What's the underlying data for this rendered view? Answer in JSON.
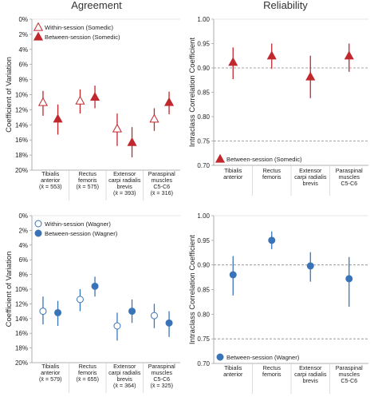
{
  "titles": {
    "left": "Agreement",
    "right": "Reliability"
  },
  "chart_data": [
    {
      "type": "scatter",
      "panel": "top-left",
      "title": "Agreement",
      "ylabel": "Coefficient of Variation",
      "ylim": [
        0,
        20
      ],
      "y_inverted": true,
      "yticks": [
        "0%",
        "2%",
        "4%",
        "6%",
        "8%",
        "10%",
        "12%",
        "14%",
        "16%",
        "18%",
        "20%"
      ],
      "categories": [
        [
          "Tibialis",
          "anterior",
          "(x̄ = 553)"
        ],
        [
          "Rectus",
          "femoris",
          "(x̄ = 575)"
        ],
        [
          "Extensor",
          "carpi radialis",
          "brevis",
          "(x̄ = 393)"
        ],
        [
          "Paraspinal",
          "muscles",
          "C5-C6",
          "(x̄ = 316)"
        ]
      ],
      "legend_position": "top-left",
      "series": [
        {
          "name": "Within-session (Somedic)",
          "marker": "triangle-open",
          "color": "#c0282d",
          "values": [
            11.0,
            10.8,
            14.5,
            13.2
          ],
          "lower": [
            9.5,
            9.3,
            12.5,
            11.8
          ],
          "upper": [
            12.8,
            12.5,
            16.8,
            14.8
          ]
        },
        {
          "name": "Between-session (Somedic)",
          "marker": "triangle",
          "color": "#c0282d",
          "values": [
            13.2,
            10.3,
            16.3,
            11.0
          ],
          "lower": [
            11.3,
            8.8,
            14.3,
            9.6
          ],
          "upper": [
            15.3,
            11.8,
            18.3,
            12.6
          ]
        }
      ]
    },
    {
      "type": "scatter",
      "panel": "top-right",
      "title": "Reliability",
      "ylabel": "Intraclass Correlation Coefficient",
      "ylim": [
        0.7,
        1.0
      ],
      "yticks": [
        "0.70",
        "0.75",
        "0.80",
        "0.85",
        "0.90",
        "0.95",
        "1.00"
      ],
      "reference_lines": [
        0.9,
        0.75
      ],
      "categories": [
        [
          "Tibialis",
          "anterior"
        ],
        [
          "Rectus",
          "femoris"
        ],
        [
          "Extensor",
          "carpi radialis",
          "brevis"
        ],
        [
          "Paraspinal",
          "muscles",
          "C5-C6"
        ]
      ],
      "legend_position": "bottom-left",
      "series": [
        {
          "name": "Between-session (Somedic)",
          "marker": "triangle",
          "color": "#c0282d",
          "values": [
            0.912,
            0.925,
            0.882,
            0.925
          ],
          "lower": [
            0.877,
            0.898,
            0.838,
            0.892
          ],
          "upper": [
            0.942,
            0.95,
            0.925,
            0.95
          ]
        }
      ]
    },
    {
      "type": "scatter",
      "panel": "bottom-left",
      "ylabel": "Coefficient of Variation",
      "ylim": [
        0,
        20
      ],
      "y_inverted": true,
      "yticks": [
        "0%",
        "2%",
        "4%",
        "6%",
        "8%",
        "10%",
        "12%",
        "14%",
        "16%",
        "18%",
        "20%"
      ],
      "categories": [
        [
          "Tibialis",
          "anterior",
          "(x̄ = 579)"
        ],
        [
          "Rectus",
          "femoris",
          "(x̄ = 655)"
        ],
        [
          "Extensor",
          "carpi radialis",
          "brevis",
          "(x̄ = 364)"
        ],
        [
          "Paraspinal",
          "muscles",
          "C5-C6",
          "(x̄ = 325)"
        ]
      ],
      "legend_position": "top-left",
      "series": [
        {
          "name": "Within-session (Wagner)",
          "marker": "circle-open",
          "color": "#3a74b8",
          "values": [
            13.0,
            11.4,
            15.0,
            13.6
          ],
          "lower": [
            11.0,
            10.0,
            13.2,
            12.0
          ],
          "upper": [
            14.8,
            13.0,
            17.0,
            15.3
          ]
        },
        {
          "name": "Between-session (Wagner)",
          "marker": "circle",
          "color": "#3a74b8",
          "values": [
            13.2,
            9.6,
            13.0,
            14.6
          ],
          "lower": [
            11.6,
            8.3,
            11.4,
            13.0
          ],
          "upper": [
            15.0,
            11.0,
            14.6,
            16.5
          ]
        }
      ]
    },
    {
      "type": "scatter",
      "panel": "bottom-right",
      "ylabel": "Intraclass Correlation Coefficient",
      "ylim": [
        0.7,
        1.0
      ],
      "yticks": [
        "0.70",
        "0.75",
        "0.80",
        "0.85",
        "0.90",
        "0.95",
        "1.00"
      ],
      "reference_lines": [
        0.9,
        0.75
      ],
      "categories": [
        [
          "Tibialis",
          "anterior"
        ],
        [
          "Rectus",
          "femoris"
        ],
        [
          "Extensor",
          "carpi radialis",
          "brevis"
        ],
        [
          "Paraspinal",
          "muscles",
          "C5-C6"
        ]
      ],
      "legend_position": "bottom-left",
      "series": [
        {
          "name": "Between-session (Wagner)",
          "marker": "circle",
          "color": "#3a74b8",
          "values": [
            0.88,
            0.95,
            0.898,
            0.872
          ],
          "lower": [
            0.838,
            0.932,
            0.866,
            0.815
          ],
          "upper": [
            0.918,
            0.968,
            0.926,
            0.916
          ]
        }
      ]
    }
  ]
}
